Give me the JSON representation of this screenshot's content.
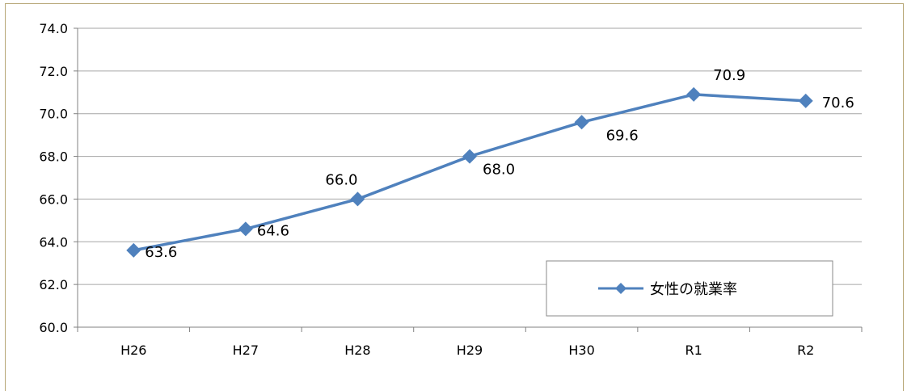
{
  "chart_data": {
    "type": "line",
    "categories": [
      "H26",
      "H27",
      "H28",
      "H29",
      "H30",
      "R1",
      "R2"
    ],
    "series": [
      {
        "name": "女性の就業率",
        "values": [
          63.6,
          64.6,
          66.0,
          68.0,
          69.6,
          70.9,
          70.6
        ]
      }
    ],
    "data_labels": [
      "63.6",
      "64.6",
      "66.0",
      "68.0",
      "69.6",
      "70.9",
      "70.6"
    ],
    "ylim": [
      60.0,
      74.0
    ],
    "yticks": [
      "60.0",
      "62.0",
      "64.0",
      "66.0",
      "68.0",
      "70.0",
      "72.0",
      "74.0"
    ],
    "grid": true,
    "legend_position": "bottom-right",
    "line_color": "#4f81bd",
    "grid_color": "#a6a6a6"
  }
}
